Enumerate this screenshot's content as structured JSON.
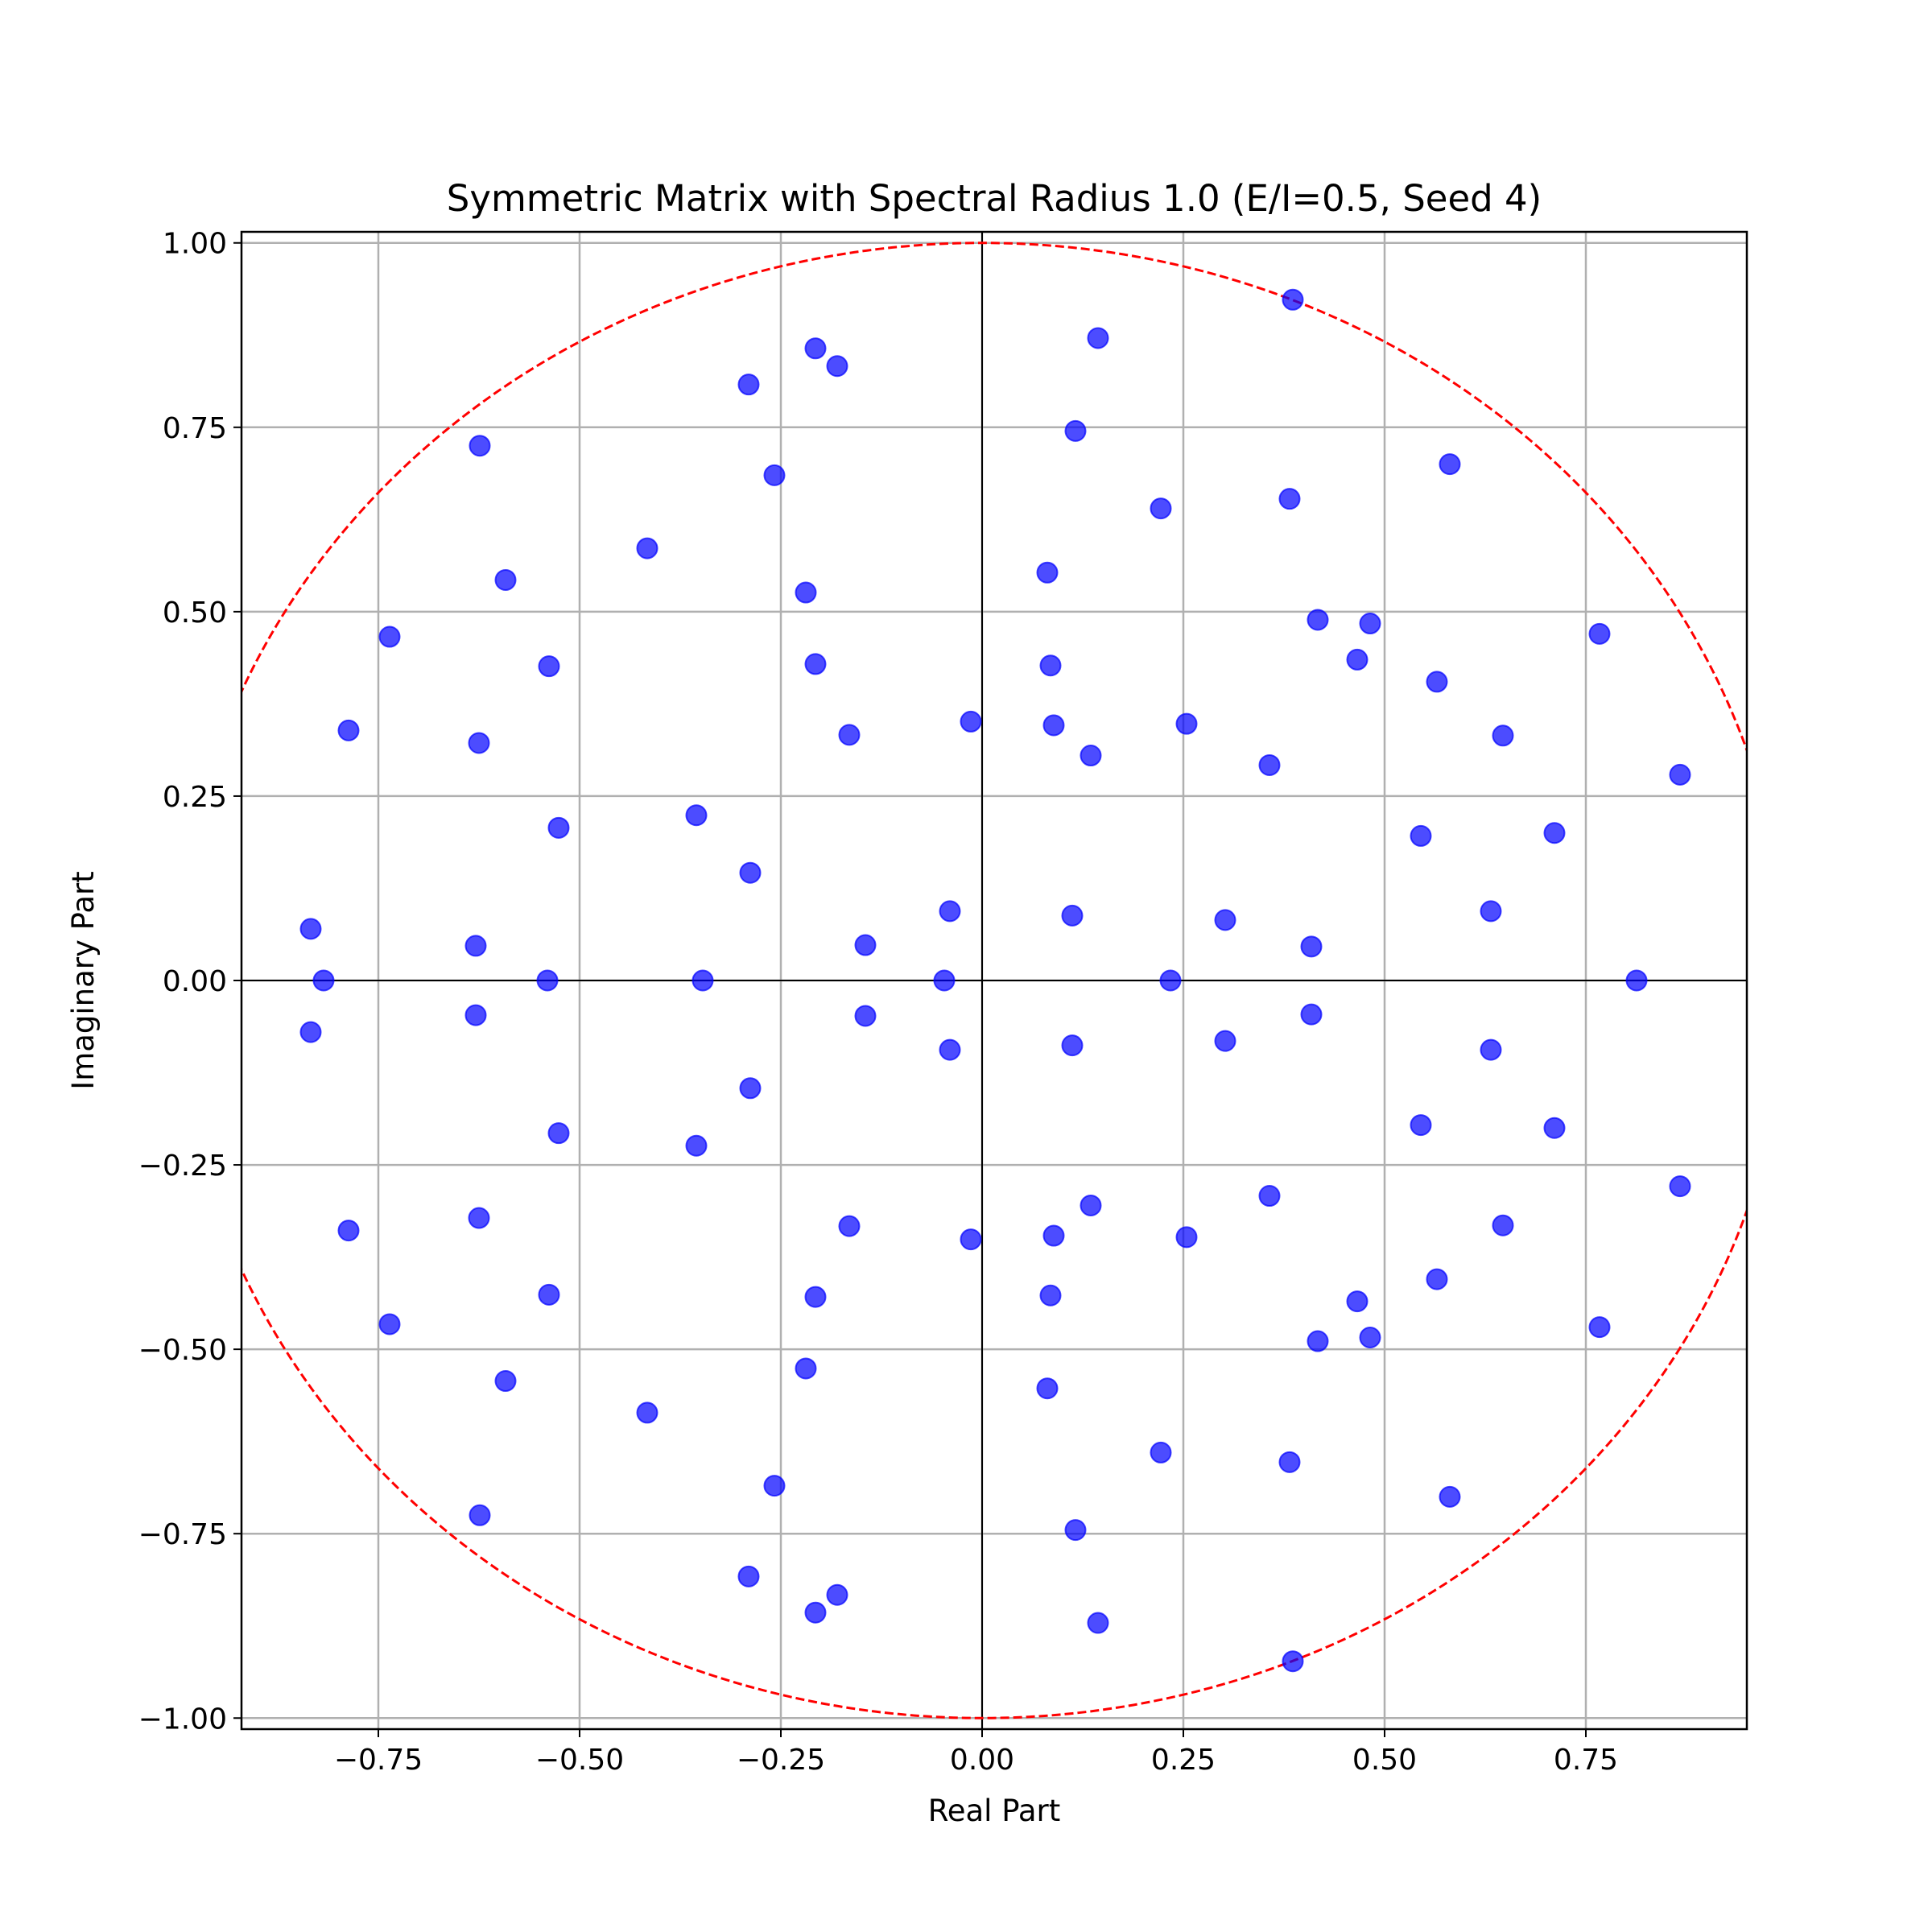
{
  "chart_data": {
    "type": "scatter",
    "title": "Symmetric Matrix with Spectral Radius 1.0 (E/I=0.5, Seed 4)",
    "xlabel": "Real Part",
    "ylabel": "Imaginary Part",
    "xlim": [
      -0.92,
      0.95
    ],
    "ylim": [
      -1.015,
      1.015
    ],
    "x_ticks": [
      -0.75,
      -0.5,
      -0.25,
      0.0,
      0.25,
      0.5,
      0.75
    ],
    "x_tick_labels": [
      "−0.75",
      "−0.50",
      "−0.25",
      "0.00",
      "0.25",
      "0.50",
      "0.75"
    ],
    "y_ticks": [
      1.0,
      0.75,
      0.5,
      0.25,
      0.0,
      -0.25,
      -0.5,
      -0.75,
      -1.0
    ],
    "y_tick_labels": [
      "1.00",
      "0.75",
      "0.50",
      "0.25",
      "0.00",
      "−0.25",
      "−0.50",
      "−0.75",
      "−1.00"
    ],
    "grid": true,
    "reference_lines": {
      "horizontal": 0,
      "vertical": 0,
      "color": "#000000"
    },
    "unit_circle": {
      "radius": 1.0,
      "style": "dashed",
      "color": "#ff0000"
    },
    "marker_color": "#0000ff",
    "marker_alpha": 0.7,
    "points_upper": [
      [
        0.386,
        0.923
      ],
      [
        -0.207,
        0.857
      ],
      [
        0.144,
        0.871
      ],
      [
        -0.18,
        0.833
      ],
      [
        -0.29,
        0.808
      ],
      [
        0.116,
        0.745
      ],
      [
        -0.624,
        0.725
      ],
      [
        0.581,
        0.7
      ],
      [
        -0.258,
        0.685
      ],
      [
        0.382,
        0.653
      ],
      [
        0.222,
        0.64
      ],
      [
        -0.416,
        0.586
      ],
      [
        0.081,
        0.553
      ],
      [
        -0.592,
        0.543
      ],
      [
        -0.219,
        0.526
      ],
      [
        0.417,
        0.489
      ],
      [
        0.482,
        0.484
      ],
      [
        -0.736,
        0.466
      ],
      [
        0.767,
        0.47
      ],
      [
        0.466,
        0.435
      ],
      [
        -0.538,
        0.426
      ],
      [
        -0.207,
        0.429
      ],
      [
        0.085,
        0.427
      ],
      [
        0.565,
        0.405
      ],
      [
        -0.787,
        0.339
      ],
      [
        -0.014,
        0.351
      ],
      [
        0.089,
        0.346
      ],
      [
        0.254,
        0.348
      ],
      [
        -0.165,
        0.333
      ],
      [
        0.647,
        0.332
      ],
      [
        -0.625,
        0.322
      ],
      [
        0.135,
        0.305
      ],
      [
        0.357,
        0.292
      ],
      [
        0.867,
        0.279
      ],
      [
        -0.355,
        0.224
      ],
      [
        -0.526,
        0.207
      ],
      [
        0.711,
        0.2
      ],
      [
        0.545,
        0.196
      ],
      [
        -0.288,
        0.146
      ],
      [
        -0.04,
        0.094
      ],
      [
        0.632,
        0.094
      ],
      [
        0.112,
        0.088
      ],
      [
        0.302,
        0.082
      ],
      [
        -0.834,
        0.07
      ],
      [
        -0.145,
        0.048
      ],
      [
        -0.629,
        0.047
      ],
      [
        0.409,
        0.046
      ]
    ],
    "points_real": [
      -0.818,
      -0.54,
      -0.347,
      -0.047,
      0.234,
      0.813
    ]
  }
}
